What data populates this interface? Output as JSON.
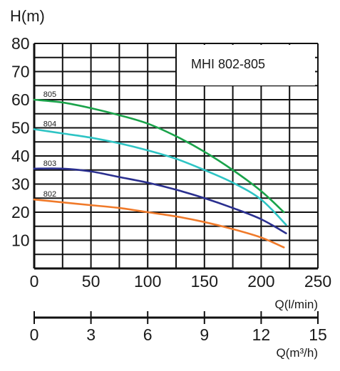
{
  "chart_data": {
    "type": "line",
    "title": "MHI 802-805",
    "ylabel": "H(m)",
    "xlabel": "Q(l/min)",
    "xlabel_secondary": "Q(m³/h)",
    "ylim": [
      0,
      80
    ],
    "xlim": [
      0,
      250
    ],
    "xlim_secondary": [
      0,
      15
    ],
    "y_ticks": [
      "80",
      "70",
      "60",
      "50",
      "40",
      "30",
      "20",
      "10"
    ],
    "x_ticks": [
      "0",
      "50",
      "100",
      "150",
      "200",
      "250"
    ],
    "x_ticks_secondary": [
      "0",
      "3",
      "6",
      "9",
      "12",
      "15"
    ],
    "grid": true,
    "series": [
      {
        "name": "805",
        "color": "#1aa34a",
        "points": [
          [
            0,
            60
          ],
          [
            25,
            59
          ],
          [
            50,
            57
          ],
          [
            75,
            54.5
          ],
          [
            100,
            51.5
          ],
          [
            125,
            47
          ],
          [
            150,
            41.5
          ],
          [
            175,
            35
          ],
          [
            200,
            27.5
          ],
          [
            220,
            20
          ]
        ]
      },
      {
        "name": "804",
        "color": "#2ec4c4",
        "points": [
          [
            0,
            49.5
          ],
          [
            25,
            48
          ],
          [
            50,
            46.5
          ],
          [
            75,
            44.5
          ],
          [
            100,
            42
          ],
          [
            125,
            39
          ],
          [
            150,
            35
          ],
          [
            175,
            30.5
          ],
          [
            200,
            24.5
          ],
          [
            222,
            15.5
          ]
        ]
      },
      {
        "name": "803",
        "color": "#2a2f8f",
        "points": [
          [
            0,
            35.5
          ],
          [
            25,
            35.5
          ],
          [
            50,
            34.5
          ],
          [
            75,
            32.5
          ],
          [
            100,
            30.5
          ],
          [
            125,
            28
          ],
          [
            150,
            25
          ],
          [
            175,
            21.5
          ],
          [
            200,
            17.5
          ],
          [
            222,
            12.5
          ]
        ]
      },
      {
        "name": "802",
        "color": "#f07a2a",
        "points": [
          [
            0,
            24.5
          ],
          [
            25,
            23.5
          ],
          [
            50,
            22.5
          ],
          [
            75,
            21.5
          ],
          [
            100,
            20
          ],
          [
            125,
            18.5
          ],
          [
            150,
            16.5
          ],
          [
            175,
            14
          ],
          [
            200,
            11
          ],
          [
            220,
            7.5
          ]
        ]
      }
    ]
  }
}
